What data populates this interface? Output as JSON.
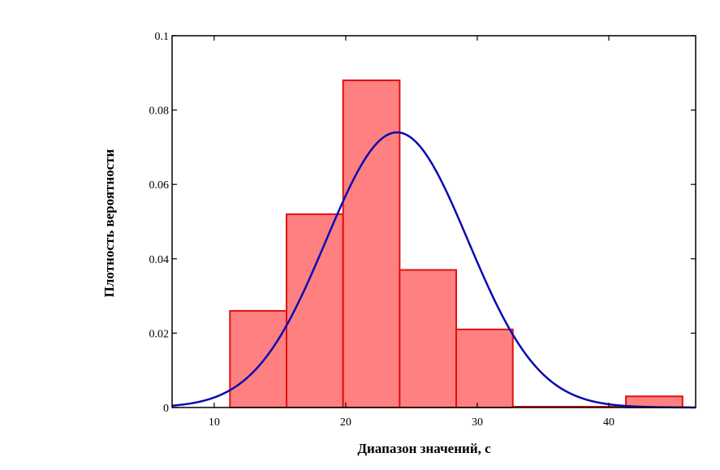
{
  "chart_data": {
    "type": "bar",
    "title": "",
    "xlabel": "Диапазон значений, с",
    "ylabel": "Плотность вероятности",
    "xlim": [
      6.8,
      46.6
    ],
    "ylim": [
      0,
      0.1
    ],
    "x_ticks": [
      10,
      20,
      30,
      40
    ],
    "y_ticks": [
      0,
      0.02,
      0.04,
      0.06,
      0.08,
      0.1
    ],
    "x_tick_labels": [
      "10",
      "20",
      "30",
      "40"
    ],
    "y_tick_labels": [
      "0",
      "0.02",
      "0.04",
      "0.06",
      "0.08",
      "0.1"
    ],
    "grid": false,
    "histogram": {
      "bins": [
        {
          "x0": 11.2,
          "x1": 15.5,
          "value": 0.026
        },
        {
          "x0": 15.5,
          "x1": 19.8,
          "value": 0.052
        },
        {
          "x0": 19.8,
          "x1": 24.1,
          "value": 0.088
        },
        {
          "x0": 24.1,
          "x1": 28.4,
          "value": 0.037
        },
        {
          "x0": 28.4,
          "x1": 32.7,
          "value": 0.021
        },
        {
          "x0": 32.7,
          "x1": 37.0,
          "value": 0
        },
        {
          "x0": 37.0,
          "x1": 41.3,
          "value": 0
        },
        {
          "x0": 41.3,
          "x1": 45.6,
          "value": 0.003
        }
      ],
      "fill": "#ff8080",
      "stroke": "#dd1111"
    },
    "density_curve": {
      "distribution": "normal",
      "mean": 23.9,
      "sd": 5.4,
      "peak": 0.074,
      "color": "#0a0ab0"
    }
  }
}
